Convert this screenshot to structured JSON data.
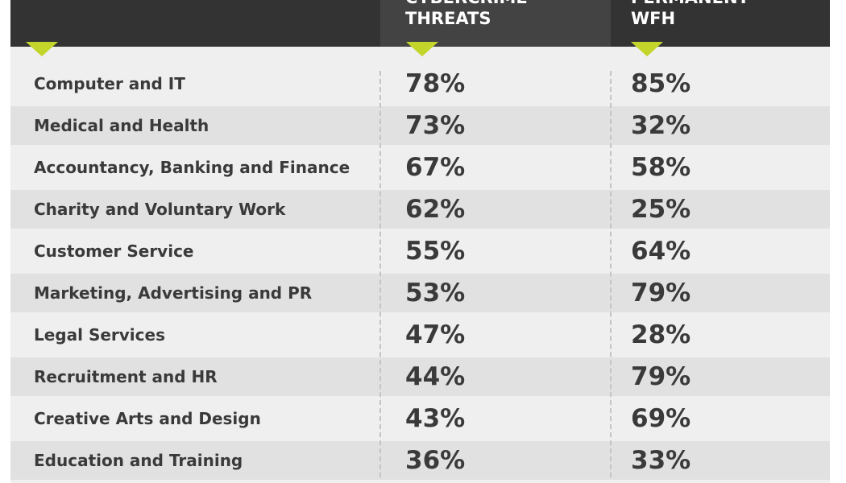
{
  "table": {
    "columns": [
      {
        "lines": [
          "CYBERCRIME",
          "THREATS"
        ]
      },
      {
        "lines": [
          "PERMANENT",
          "WFH"
        ]
      }
    ],
    "rows": [
      [
        "Computer and IT",
        "78%",
        "85%"
      ],
      [
        "Medical and Health",
        "73%",
        "32%"
      ],
      [
        "Accountancy, Banking and Finance",
        "67%",
        "58%"
      ],
      [
        "Charity and Voluntary Work",
        "62%",
        "25%"
      ],
      [
        "Customer Service",
        "55%",
        "64%"
      ],
      [
        "Marketing, Advertising and PR",
        "53%",
        "79%"
      ],
      [
        "Legal Services",
        "47%",
        "28%"
      ],
      [
        "Recruitment and HR",
        "44%",
        "79%"
      ],
      [
        "Creative Arts and Design",
        "43%",
        "69%"
      ],
      [
        "Education and Training",
        "36%",
        "33%"
      ]
    ]
  }
}
